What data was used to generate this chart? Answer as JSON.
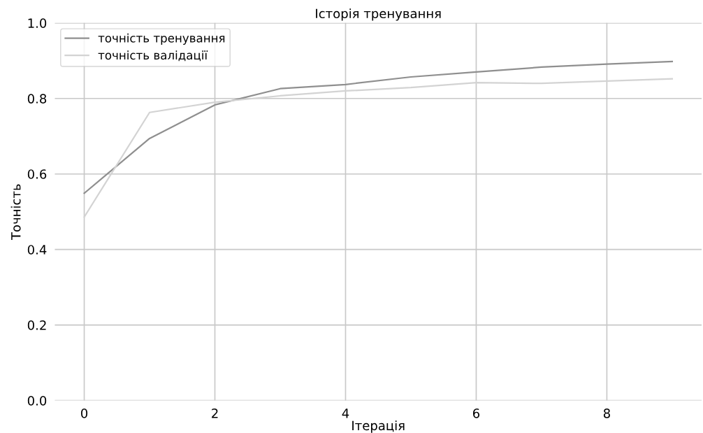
{
  "chart_data": {
    "type": "line",
    "title": "Історія тренування",
    "xlabel": "Ітерація",
    "ylabel": "Точність",
    "x": [
      0,
      1,
      2,
      3,
      4,
      5,
      6,
      7,
      8,
      9
    ],
    "series": [
      {
        "name": "точність тренування",
        "color": "#8f8f8f",
        "values": [
          0.549,
          0.694,
          0.783,
          0.826,
          0.837,
          0.857,
          0.87,
          0.883,
          0.891,
          0.898
        ]
      },
      {
        "name": "точність валідації",
        "color": "#d3d3d3",
        "values": [
          0.486,
          0.763,
          0.79,
          0.807,
          0.82,
          0.829,
          0.842,
          0.84,
          0.846,
          0.852
        ]
      }
    ],
    "xlim": [
      -0.45,
      9.45
    ],
    "xticks": [
      0,
      2,
      4,
      6,
      8
    ],
    "ylim": [
      0,
      1
    ],
    "yticks": [
      {
        "value": 0,
        "label": "0.0"
      },
      0.2,
      0.4,
      0.6,
      0.8,
      {
        "value": 1,
        "label": "1.0"
      }
    ],
    "grid": true,
    "legend": "top left",
    "marker": "none",
    "line_style": "solid"
  }
}
